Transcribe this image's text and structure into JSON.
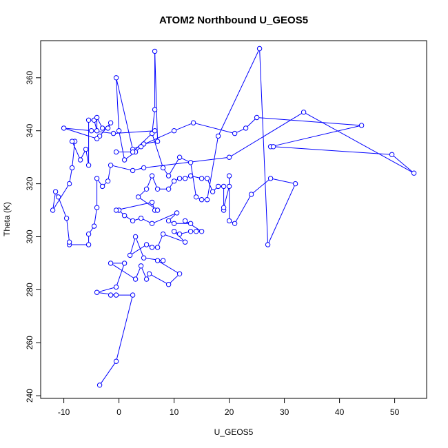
{
  "chart_data": {
    "type": "line",
    "title": "ATOM2 Northbound U_GEOS5",
    "xlabel": "U_GEOS5",
    "ylabel": "Theta (K)",
    "xlim": [
      -14.2,
      55.8
    ],
    "ylim": [
      239,
      374
    ],
    "x_ticks": [
      -10,
      0,
      10,
      20,
      30,
      40,
      50
    ],
    "y_ticks": [
      240,
      260,
      280,
      300,
      320,
      340,
      360
    ],
    "grid": false,
    "legend": "none",
    "series": [
      {
        "color": "#0000ff",
        "marker": "open-circle",
        "line": "solid",
        "points": [
          [
            -3.5,
            244
          ],
          [
            -0.5,
            253
          ],
          [
            2.5,
            278
          ],
          [
            -1.5,
            278
          ],
          [
            -0.5,
            278
          ],
          [
            -4,
            279
          ],
          [
            -0.5,
            281
          ],
          [
            1,
            290
          ],
          [
            -1.5,
            290
          ],
          [
            3,
            284
          ],
          [
            4,
            289
          ],
          [
            5,
            284
          ],
          [
            5.5,
            286
          ],
          [
            9,
            282
          ],
          [
            11,
            286
          ],
          [
            7,
            291
          ],
          [
            8,
            291
          ],
          [
            4.5,
            292
          ],
          [
            3,
            300
          ],
          [
            2,
            293
          ],
          [
            5,
            297
          ],
          [
            6,
            296
          ],
          [
            7,
            296
          ],
          [
            8,
            301
          ],
          [
            12,
            298
          ],
          [
            10,
            302
          ],
          [
            11,
            301
          ],
          [
            13,
            302
          ],
          [
            14,
            302
          ],
          [
            15,
            302
          ],
          [
            12,
            306
          ],
          [
            13,
            305
          ],
          [
            10,
            305
          ],
          [
            9,
            306
          ],
          [
            10.5,
            309
          ],
          [
            6,
            305
          ],
          [
            4,
            307
          ],
          [
            2.5,
            306
          ],
          [
            1,
            308
          ],
          [
            0,
            310
          ],
          [
            -0.5,
            310
          ],
          [
            6,
            313
          ],
          [
            6.5,
            310
          ],
          [
            7,
            310
          ],
          [
            3.5,
            315
          ],
          [
            5,
            318
          ],
          [
            6,
            323
          ],
          [
            7,
            318
          ],
          [
            9,
            318
          ],
          [
            10,
            321
          ],
          [
            11,
            322
          ],
          [
            12,
            322
          ],
          [
            13,
            323
          ],
          [
            15,
            322
          ],
          [
            16,
            322
          ],
          [
            17,
            317
          ],
          [
            18,
            319
          ],
          [
            19,
            319
          ],
          [
            19,
            310
          ],
          [
            19,
            311
          ],
          [
            20,
            319
          ],
          [
            20,
            323
          ],
          [
            20,
            306
          ],
          [
            21,
            305
          ],
          [
            24,
            316
          ],
          [
            27.5,
            322
          ],
          [
            32,
            320
          ],
          [
            27,
            297
          ],
          [
            25.5,
            371
          ],
          [
            18,
            338
          ],
          [
            16,
            314
          ],
          [
            15,
            314
          ],
          [
            14,
            315
          ],
          [
            13,
            328
          ],
          [
            11,
            330
          ],
          [
            9,
            323
          ],
          [
            8,
            326
          ],
          [
            6,
            339
          ],
          [
            6.5,
            348
          ],
          [
            6.5,
            370
          ],
          [
            7,
            336
          ],
          [
            4.5,
            335
          ],
          [
            4,
            334
          ],
          [
            3,
            332
          ],
          [
            1,
            329
          ],
          [
            0,
            340
          ],
          [
            -0.5,
            360
          ],
          [
            2.5,
            333
          ],
          [
            10,
            340
          ],
          [
            13.5,
            343
          ],
          [
            21,
            339
          ],
          [
            23,
            341
          ],
          [
            25,
            345
          ],
          [
            44,
            342
          ],
          [
            27.5,
            334
          ],
          [
            28,
            334
          ],
          [
            49.5,
            331
          ],
          [
            53.5,
            324
          ],
          [
            33.5,
            347
          ],
          [
            20,
            330
          ],
          [
            4.5,
            326
          ],
          [
            2.5,
            325
          ],
          [
            -1.5,
            327
          ],
          [
            -2,
            321
          ],
          [
            -3,
            319
          ],
          [
            -4,
            322
          ],
          [
            -4,
            311
          ],
          [
            -4.5,
            304
          ],
          [
            -5.5,
            301
          ],
          [
            -5.5,
            297
          ],
          [
            -9,
            297
          ],
          [
            -9,
            298
          ],
          [
            -9.5,
            307
          ],
          [
            -11,
            315
          ],
          [
            -11.5,
            317
          ],
          [
            -12,
            310
          ],
          [
            -9,
            320
          ],
          [
            -8.5,
            326
          ],
          [
            -8,
            336
          ],
          [
            -8.5,
            336
          ],
          [
            -7,
            329
          ],
          [
            -6,
            333
          ],
          [
            -5.5,
            327
          ],
          [
            -5.5,
            344
          ],
          [
            -4.5,
            344
          ],
          [
            -4,
            340
          ],
          [
            -4,
            345
          ],
          [
            -3,
            341
          ],
          [
            -2,
            341
          ],
          [
            -1.5,
            343
          ],
          [
            -3.5,
            338
          ],
          [
            -4,
            337
          ],
          [
            -10,
            341
          ],
          [
            -5,
            340
          ],
          [
            -1,
            339
          ],
          [
            6.5,
            340
          ],
          [
            2.5,
            332
          ],
          [
            -0.5,
            332
          ]
        ]
      }
    ]
  }
}
